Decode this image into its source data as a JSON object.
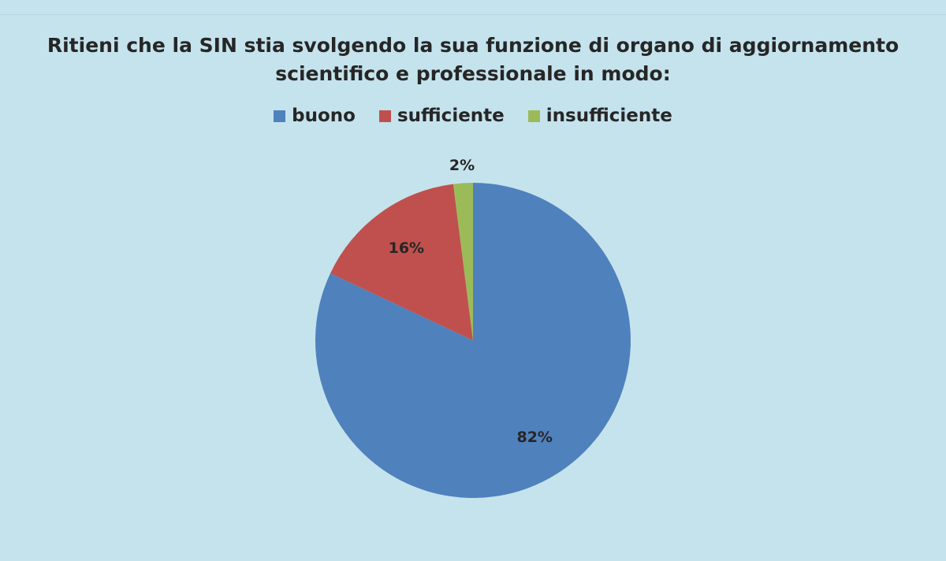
{
  "chart_data": {
    "type": "pie",
    "title": "Ritieni che la SIN stia svolgendo la sua funzione di organo di aggiornamento scientifico e professionale in modo:",
    "title_lines": [
      "Ritieni che la SIN stia svolgendo la sua funzione di organo di aggiornamento",
      "scientifico e professionale in modo:"
    ],
    "legend_position": "top",
    "categories": [
      "buono",
      "sufficiente",
      "insufficiente"
    ],
    "values": [
      82,
      16,
      2
    ],
    "labels": [
      "82%",
      "16%",
      "2%"
    ],
    "colors": [
      "#4f81bd",
      "#c0504d",
      "#9bbb59"
    ]
  }
}
